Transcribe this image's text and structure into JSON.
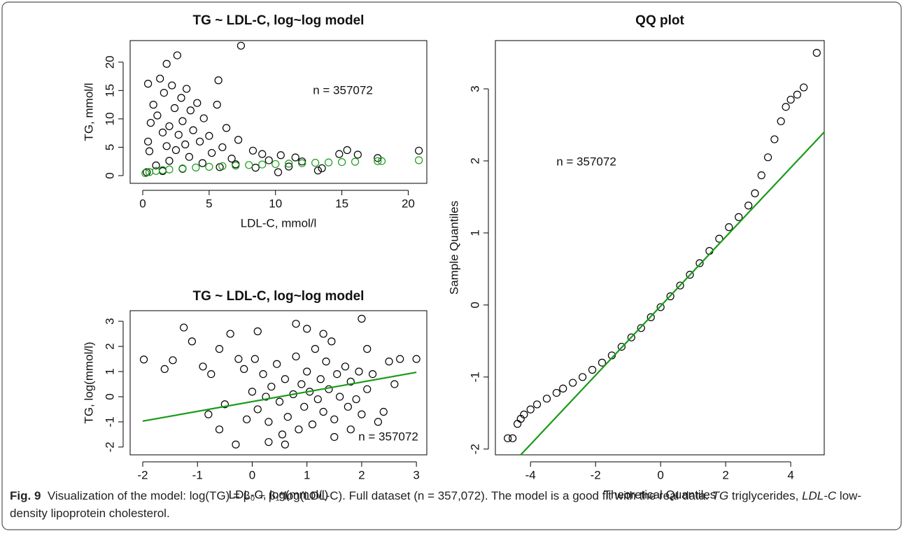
{
  "chart_data": [
    {
      "type": "scatter",
      "title": "TG ~ LDL-C, log~log model",
      "xlabel": "LDL-C, mmol/l",
      "ylabel": "TG, mmol/l",
      "annotation": "n = 357072",
      "xlim": [
        -0.95,
        21.4
      ],
      "ylim": [
        -1.36,
        23.8
      ],
      "xticks": [
        0,
        5,
        10,
        15,
        20
      ],
      "yticks": [
        0,
        5,
        10,
        15,
        20
      ],
      "series": [
        {
          "style": "points",
          "color": "#000000",
          "x": [
            7.4,
            2.6,
            1.8,
            5.7,
            0.4,
            1.3,
            2.2,
            3.3,
            1.6,
            2.9,
            4.1,
            0.8,
            5.6,
            3.6,
            2.4,
            1.1,
            4.6,
            0.6,
            3.0,
            6.3,
            2.0,
            3.8,
            1.5,
            5.0,
            2.7,
            0.4,
            7.2,
            4.3,
            3.2,
            1.8,
            6.0,
            8.3,
            2.5,
            9.0,
            5.2,
            10.4,
            0.5,
            11.5,
            3.5,
            6.7,
            12.0,
            15.4,
            14.8,
            16.2,
            13.5,
            11.0,
            8.5,
            4.5,
            2.0,
            1.0,
            7.0,
            17.7,
            20.8,
            9.5,
            3.0,
            5.8,
            0.3,
            1.5,
            13.2,
            10.2
          ],
          "values": [
            22.9,
            21.2,
            19.7,
            16.8,
            16.2,
            17.1,
            15.9,
            15.3,
            14.6,
            13.7,
            12.8,
            12.5,
            12.5,
            11.5,
            11.9,
            10.6,
            10.1,
            9.3,
            9.6,
            8.4,
            8.7,
            8.0,
            7.6,
            7.0,
            7.2,
            6.0,
            6.3,
            6.0,
            5.5,
            5.2,
            5.0,
            4.4,
            4.5,
            3.8,
            4.0,
            3.6,
            4.3,
            3.2,
            3.3,
            3.0,
            2.5,
            4.5,
            3.8,
            3.7,
            1.3,
            1.6,
            1.4,
            2.2,
            2.6,
            1.8,
            2.0,
            3.1,
            4.4,
            2.7,
            1.2,
            1.5,
            0.6,
            0.8,
            0.9,
            0.6
          ]
        },
        {
          "style": "points",
          "color": "#1a9a1a",
          "x": [
            0.2,
            0.5,
            1,
            1.5,
            2,
            3,
            4,
            5,
            6,
            7,
            8,
            9,
            10,
            11,
            12,
            13,
            14,
            15,
            16,
            17.7,
            18,
            20.8
          ],
          "values": [
            0.44,
            0.63,
            0.83,
            0.97,
            1.09,
            1.27,
            1.43,
            1.55,
            1.67,
            1.77,
            1.87,
            1.96,
            2.04,
            2.11,
            2.19,
            2.26,
            2.32,
            2.39,
            2.45,
            2.55,
            2.56,
            2.71
          ]
        }
      ]
    },
    {
      "type": "scatter",
      "title": "TG ~ LDL-C, log~log model",
      "xlabel": "LDL-C, log(mmol/l)",
      "ylabel": "TG, log(mmol/l)",
      "annotation": "n = 357072",
      "xlim": [
        -2.23,
        3.19
      ],
      "ylim": [
        -2.31,
        3.42
      ],
      "xticks": [
        -2,
        -1,
        0,
        1,
        2,
        3
      ],
      "yticks": [
        -2,
        -1,
        0,
        1,
        2,
        3
      ],
      "series": [
        {
          "style": "points",
          "color": "#000000",
          "x": [
            -1.98,
            -1.6,
            -1.45,
            -1.25,
            -1.1,
            -0.9,
            -0.75,
            -0.6,
            -0.5,
            -0.4,
            -0.3,
            -0.25,
            -0.6,
            -0.8,
            0.1,
            0.3,
            0.6,
            0.8,
            1.0,
            1.3,
            1.5,
            2.0,
            2.1,
            2.3,
            2.5,
            2.7,
            3.0,
            2.6,
            2.4,
            1.8,
            0,
            0.1,
            0.2,
            0.3,
            0.35,
            0.45,
            0.5,
            0.6,
            0.65,
            0.75,
            0.8,
            0.85,
            0.9,
            0.95,
            1.0,
            1.05,
            1.1,
            1.15,
            1.2,
            1.25,
            1.3,
            1.35,
            1.4,
            1.5,
            1.55,
            1.6,
            1.7,
            1.75,
            1.8,
            1.9,
            1.95,
            2.0,
            2.1,
            2.2,
            -0.1,
            -0.15,
            0.05,
            0.25,
            1.45,
            0.55
          ],
          "values": [
            1.48,
            1.1,
            1.45,
            2.75,
            2.2,
            1.2,
            0.9,
            1.9,
            -0.3,
            2.5,
            -1.9,
            1.5,
            -1.3,
            -0.7,
            2.6,
            -1.8,
            -1.9,
            2.9,
            2.7,
            2.5,
            -1.6,
            3.1,
            1.9,
            -1.0,
            1.4,
            1.5,
            1.5,
            0.5,
            -0.6,
            -1.3,
            0.2,
            -0.5,
            0.9,
            -1.0,
            0.4,
            1.3,
            -0.2,
            0.7,
            -0.8,
            0.1,
            1.6,
            -1.3,
            0.5,
            -0.4,
            1.0,
            0.2,
            -1.1,
            1.9,
            -0.1,
            0.7,
            -0.6,
            1.4,
            0.3,
            -0.9,
            0.9,
            0.0,
            1.2,
            -0.4,
            0.6,
            -0.1,
            1.0,
            -0.7,
            0.3,
            0.9,
            -0.9,
            1.1,
            1.5,
            0.0,
            2.2,
            -1.5
          ]
        },
        {
          "style": "line",
          "color": "#1a9a1a",
          "x": [
            -2,
            3
          ],
          "values": [
            -0.97,
            0.97
          ]
        }
      ]
    },
    {
      "type": "scatter",
      "title": "QQ plot",
      "xlabel": "Theoretical Quantiles",
      "ylabel": "Sample Quantiles",
      "annotation": "n = 357072",
      "xlim": [
        -5.08,
        5.03
      ],
      "ylim": [
        -2.08,
        3.67
      ],
      "xticks": [
        -4,
        -2,
        0,
        2,
        4
      ],
      "yticks": [
        -2,
        -1,
        0,
        1,
        2,
        3
      ],
      "series": [
        {
          "style": "points",
          "color": "#000000",
          "x": [
            -4.7,
            -4.55,
            -4.4,
            -4.3,
            -4.2,
            -4.0,
            -3.8,
            -3.5,
            -3.2,
            -3.0,
            -2.7,
            -2.4,
            -2.1,
            -1.8,
            -1.5,
            -1.2,
            -0.9,
            -0.6,
            -0.3,
            0,
            0.3,
            0.6,
            0.9,
            1.2,
            1.5,
            1.8,
            2.1,
            2.4,
            2.7,
            2.9,
            3.1,
            3.3,
            3.5,
            3.7,
            3.85,
            4.0,
            4.2,
            4.4,
            4.8
          ],
          "values": [
            -1.85,
            -1.85,
            -1.65,
            -1.58,
            -1.52,
            -1.45,
            -1.38,
            -1.3,
            -1.22,
            -1.16,
            -1.08,
            -1.0,
            -0.9,
            -0.8,
            -0.7,
            -0.58,
            -0.45,
            -0.32,
            -0.17,
            -0.03,
            0.12,
            0.27,
            0.42,
            0.58,
            0.75,
            0.92,
            1.08,
            1.22,
            1.38,
            1.55,
            1.8,
            2.05,
            2.3,
            2.55,
            2.75,
            2.85,
            2.92,
            3.02,
            3.5
          ]
        },
        {
          "style": "line",
          "color": "#1a9a1a",
          "x": [
            -4.3,
            5.03
          ],
          "values": [
            -2.08,
            2.4
          ]
        }
      ]
    }
  ],
  "caption": {
    "label": "Fig. 9",
    "text1": "Visualization of the model: log(TG) = β₀ + β₁*log(LDL-C). Full dataset (n = 357,072). The model is a good fit with the real data. ",
    "abbr1": "TG",
    "text2": " triglycerides, ",
    "abbr2": "LDL-C",
    "text3": " low-density lipoprotein cholesterol."
  }
}
